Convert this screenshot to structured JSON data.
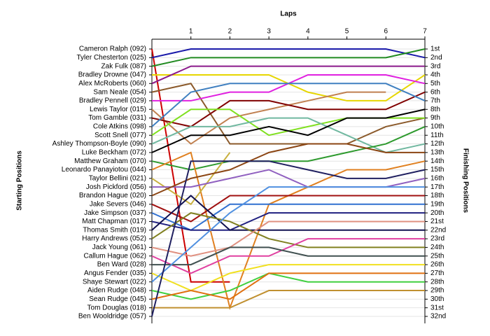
{
  "chart_data": {
    "type": "line",
    "x_label": "Laps",
    "y_label": "Starting Positions",
    "y2_label": "Finishing Positions",
    "x": [
      0,
      1,
      2,
      3,
      4,
      5,
      6,
      7
    ],
    "xlim": [
      0,
      7
    ],
    "xticks": [
      1,
      2,
      3,
      4,
      5,
      6,
      7
    ],
    "ylim": [
      1,
      32
    ],
    "y_reversed": true,
    "grid": true,
    "y2ticks": [
      {
        "value": 1,
        "label": "1st"
      },
      {
        "value": 2,
        "label": "2nd"
      },
      {
        "value": 3,
        "label": "3rd"
      },
      {
        "value": 4,
        "label": "4th"
      },
      {
        "value": 5,
        "label": "5th"
      },
      {
        "value": 6,
        "label": "6th"
      },
      {
        "value": 7,
        "label": "7th"
      },
      {
        "value": 8,
        "label": "8th"
      },
      {
        "value": 9,
        "label": "9th"
      },
      {
        "value": 10,
        "label": "10th"
      },
      {
        "value": 11,
        "label": "11th"
      },
      {
        "value": 12,
        "label": "12th"
      },
      {
        "value": 13,
        "label": "13th"
      },
      {
        "value": 14,
        "label": "14th"
      },
      {
        "value": 15,
        "label": "15th"
      },
      {
        "value": 16,
        "label": "16th"
      },
      {
        "value": 17,
        "label": "17th"
      },
      {
        "value": 18,
        "label": "18th"
      },
      {
        "value": 19,
        "label": "19th"
      },
      {
        "value": 20,
        "label": "20th"
      },
      {
        "value": 21,
        "label": "21st"
      },
      {
        "value": 22,
        "label": "22nd"
      },
      {
        "value": 23,
        "label": "23rd"
      },
      {
        "value": 24,
        "label": "24th"
      },
      {
        "value": 25,
        "label": "25th"
      },
      {
        "value": 26,
        "label": "26th"
      },
      {
        "value": 27,
        "label": "27th"
      },
      {
        "value": 28,
        "label": "28th"
      },
      {
        "value": 29,
        "label": "29th"
      },
      {
        "value": 30,
        "label": "30th"
      },
      {
        "value": 31,
        "label": "31st"
      },
      {
        "value": 32,
        "label": "32nd"
      }
    ],
    "series": [
      {
        "name": "Cameron Ralph (092)",
        "color": "#cc0000",
        "values": [
          1,
          28,
          28,
          null,
          null,
          null,
          null,
          null
        ]
      },
      {
        "name": "Tyler Chesterton (025)",
        "color": "#1a1aaa",
        "values": [
          2,
          1,
          1,
          1,
          1,
          1,
          1,
          2
        ]
      },
      {
        "name": "Zak Fulk (087)",
        "color": "#228b22",
        "values": [
          3,
          2,
          2,
          2,
          2,
          2,
          2,
          1
        ]
      },
      {
        "name": "Bradley Drowne (047)",
        "color": "#e6d600",
        "values": [
          4,
          4,
          4,
          4,
          6,
          7,
          7,
          4
        ]
      },
      {
        "name": "Alex McRoberts (060)",
        "color": "#8b1a8b",
        "values": [
          5,
          3,
          3,
          3,
          3,
          3,
          3,
          3
        ]
      },
      {
        "name": "Sam Neale (054)",
        "color": "#8b5a2b",
        "values": [
          6,
          5,
          12,
          12,
          12,
          12,
          10,
          9
        ]
      },
      {
        "name": "Bradley Pennell (029)",
        "color": "#e020e0",
        "values": [
          7,
          7,
          6,
          6,
          4,
          4,
          4,
          5
        ]
      },
      {
        "name": "Lewis Taylor (015)",
        "color": "#c08050",
        "values": [
          8,
          12,
          9,
          8,
          7,
          6,
          6,
          null
        ]
      },
      {
        "name": "Tom Gamble (031)",
        "color": "#800000",
        "values": [
          9,
          10,
          7,
          7,
          8,
          8,
          8,
          6
        ]
      },
      {
        "name": "Cole Atkins (098)",
        "color": "#4080c0",
        "values": [
          10,
          6,
          5,
          5,
          5,
          5,
          5,
          7
        ]
      },
      {
        "name": "Scott Snell (077)",
        "color": "#80e020",
        "values": [
          11,
          8,
          8,
          11,
          10,
          9,
          9,
          9
        ]
      },
      {
        "name": "Ashley Thompson-Boyle (090)",
        "color": "#70b8a0",
        "values": [
          12,
          10,
          10,
          9,
          9,
          11,
          13,
          12
        ]
      },
      {
        "name": "Luke Beckham (072)",
        "color": "#000000",
        "values": [
          13,
          11,
          11,
          10,
          11,
          9,
          9,
          8
        ]
      },
      {
        "name": "Matthew Graham (070)",
        "color": "#2e9a2e",
        "values": [
          14,
          15,
          14,
          14,
          14,
          13,
          12,
          10
        ]
      },
      {
        "name": "Leonardo Panayiotou (044)",
        "color": "#e08020",
        "values": [
          15,
          13,
          31,
          19,
          17,
          15,
          15,
          14
        ]
      },
      {
        "name": "Taylor Bellini (021)",
        "color": "#c8b040",
        "values": [
          16,
          19,
          13,
          null,
          null,
          null,
          null,
          null
        ]
      },
      {
        "name": "Josh Pickford (056)",
        "color": "#9060c0",
        "values": [
          17,
          17,
          16,
          15,
          17,
          17,
          17,
          16
        ]
      },
      {
        "name": "Brandon Hague (020)",
        "color": "#8b4513",
        "values": [
          18,
          16,
          15,
          13,
          12,
          12,
          13,
          13
        ]
      },
      {
        "name": "Jake Severs (046)",
        "color": "#a01010",
        "values": [
          19,
          21,
          18,
          18,
          18,
          18,
          18,
          18
        ]
      },
      {
        "name": "Jake Simpson (037)",
        "color": "#3070d0",
        "values": [
          20,
          22,
          19,
          19,
          19,
          19,
          19,
          19
        ]
      },
      {
        "name": "Matt Chapman (017)",
        "color": "#202080",
        "values": [
          21,
          22,
          22,
          20,
          20,
          20,
          20,
          20
        ]
      },
      {
        "name": "Thomas Smith (019)",
        "color": "#101050",
        "values": [
          22,
          18,
          22,
          22,
          22,
          22,
          22,
          22
        ]
      },
      {
        "name": "Harry Andrews (052)",
        "color": "#808020",
        "values": [
          23,
          20,
          21,
          23,
          24,
          24,
          24,
          24
        ]
      },
      {
        "name": "Jack Young (061)",
        "color": "#e09080",
        "values": [
          24,
          25,
          24,
          21,
          21,
          21,
          21,
          21
        ]
      },
      {
        "name": "Callum Hague (062)",
        "color": "#e040a0",
        "values": [
          25,
          27,
          25,
          25,
          23,
          23,
          23,
          23
        ]
      },
      {
        "name": "Ben Ward (028)",
        "color": "#405050",
        "values": [
          26,
          26,
          24,
          24,
          25,
          25,
          25,
          25
        ]
      },
      {
        "name": "Angus Fender (035)",
        "color": "#f0e020",
        "values": [
          27,
          29,
          27,
          26,
          26,
          26,
          26,
          26
        ]
      },
      {
        "name": "Shaye Stewart (022)",
        "color": "#5090e0",
        "values": [
          28,
          24,
          20,
          17,
          17,
          17,
          17,
          17
        ]
      },
      {
        "name": "Aiden Rudge (048)",
        "color": "#40d040",
        "values": [
          29,
          30,
          29,
          27,
          28,
          28,
          28,
          28
        ]
      },
      {
        "name": "Sean Rudge (045)",
        "color": "#e07010",
        "values": [
          30,
          29,
          30,
          27,
          27,
          27,
          27,
          27
        ]
      },
      {
        "name": "Tom Douglas (018)",
        "color": "#c09030",
        "values": [
          31,
          31,
          31,
          29,
          29,
          29,
          29,
          29
        ]
      },
      {
        "name": "Ben Wooldridge (057)",
        "color": "#202060",
        "values": [
          32,
          14,
          14,
          14,
          15,
          16,
          16,
          15
        ]
      }
    ]
  }
}
